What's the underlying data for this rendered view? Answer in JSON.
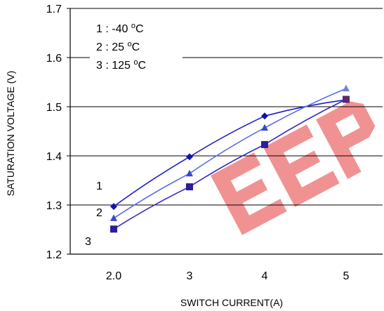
{
  "chart_data": {
    "type": "line",
    "xlabel": "SWITCH CURRENT(A)",
    "ylabel": "SATURATION VOLTAGE (V)",
    "ylim": [
      1.2,
      1.7
    ],
    "yticks": [
      "1.2",
      "1.3",
      "1.4",
      "1.5",
      "1.6",
      "1.7"
    ],
    "yticks_values": [
      1.2,
      1.3,
      1.4,
      1.5,
      1.6,
      1.7
    ],
    "categories": [
      "2.0",
      "3",
      "4",
      "5"
    ],
    "grid": "horizontal",
    "legend": {
      "placement": "top-left",
      "entries": [
        {
          "prefix": "1 : -40 ",
          "sup": "o",
          "suffix": "C"
        },
        {
          "prefix": "2 : 25 ",
          "sup": "o",
          "suffix": "C"
        },
        {
          "prefix": "3 : 125 ",
          "sup": "o",
          "suffix": "C"
        }
      ]
    },
    "series": [
      {
        "label": "1",
        "marker": "diamond",
        "color": "#1e1ec8",
        "marker_color": "#1414a8",
        "values": [
          1.297,
          1.398,
          1.481,
          1.514
        ]
      },
      {
        "label": "2",
        "marker": "triangle",
        "color": "#5a6ee6",
        "marker_color": "#3a48c8",
        "values": [
          1.273,
          1.364,
          1.457,
          1.537
        ]
      },
      {
        "label": "3",
        "marker": "square",
        "color": "#3c28c0",
        "marker_color": "#2a1e9a",
        "values": [
          1.251,
          1.337,
          1.423,
          1.515
        ]
      }
    ],
    "endpoint_marker_colors": [
      "#5a3c8c",
      "#7a80d0",
      "#5a2a70"
    ]
  },
  "watermark": {
    "text": "EEP",
    "color": "#e63a3a"
  }
}
